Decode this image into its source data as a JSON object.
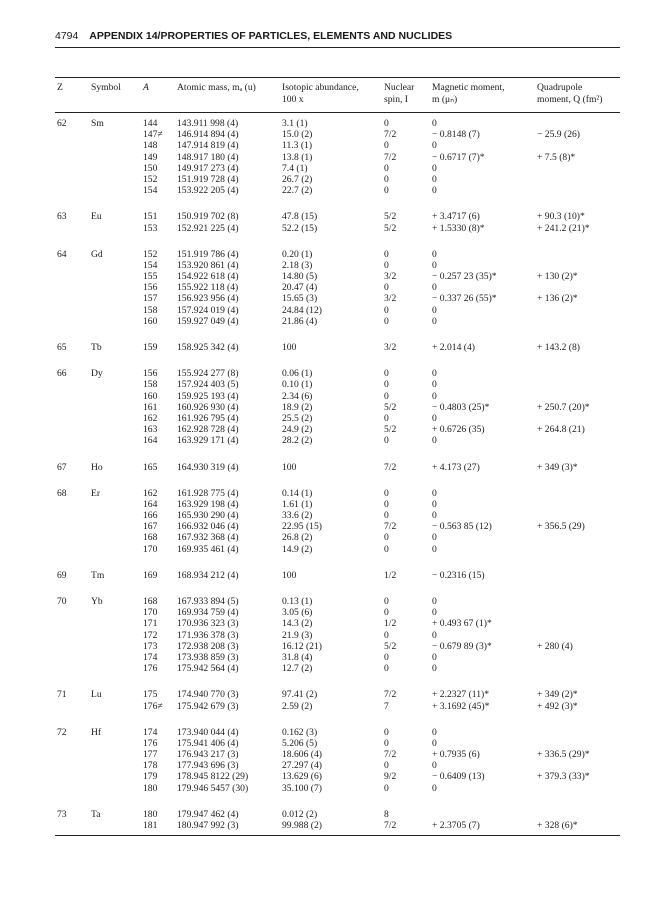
{
  "running_head": {
    "page_number": "4794",
    "title": "APPENDIX 14/PROPERTIES OF PARTICLES, ELEMENTS AND NUCLIDES"
  },
  "table": {
    "headers": {
      "z": "Z",
      "symbol": "Symbol",
      "a": "A",
      "mass": [
        "Atomic mass, mₐ (u)"
      ],
      "abundance": [
        "Isotopic abundance,",
        "100 x"
      ],
      "spin": [
        "Nuclear",
        "spin, I"
      ],
      "magnetic": [
        "Magnetic moment,",
        "m (μₙ)"
      ],
      "quadrupole": [
        "Quadrupole",
        "moment, Q (fm²)"
      ]
    },
    "groups": [
      {
        "z": "62",
        "symbol": "Sm",
        "rows": [
          [
            "144",
            "143.911 998 (4)",
            "3.1 (1)",
            "0",
            "0",
            ""
          ],
          [
            "147≠",
            "146.914 894 (4)",
            "15.0 (2)",
            "7/2",
            "− 0.8148 (7)",
            "− 25.9 (26)"
          ],
          [
            "148",
            "147.914 819 (4)",
            "11.3 (1)",
            "0",
            "0",
            ""
          ],
          [
            "149",
            "148.917 180 (4)",
            "13.8 (1)",
            "7/2",
            "− 0.6717 (7)*",
            "+ 7.5 (8)*"
          ],
          [
            "150",
            "149.917 273 (4)",
            "7.4 (1)",
            "0",
            "0",
            ""
          ],
          [
            "152",
            "151.919 728 (4)",
            "26.7 (2)",
            "0",
            "0",
            ""
          ],
          [
            "154",
            "153.922 205 (4)",
            "22.7 (2)",
            "0",
            "0",
            ""
          ]
        ]
      },
      {
        "z": "63",
        "symbol": "Eu",
        "rows": [
          [
            "151",
            "150.919 702 (8)",
            "47.8 (15)",
            "5/2",
            "+ 3.4717 (6)",
            "+ 90.3 (10)*"
          ],
          [
            "153",
            "152.921 225 (4)",
            "52.2 (15)",
            "5/2",
            "+ 1.5330 (8)*",
            "+ 241.2 (21)*"
          ]
        ]
      },
      {
        "z": "64",
        "symbol": "Gd",
        "rows": [
          [
            "152",
            "151.919 786 (4)",
            "0.20 (1)",
            "0",
            "0",
            ""
          ],
          [
            "154",
            "153.920 861 (4)",
            "2.18 (3)",
            "0",
            "0",
            ""
          ],
          [
            "155",
            "154.922 618 (4)",
            "14.80 (5)",
            "3/2",
            "− 0.257 23 (35)*",
            "+ 130 (2)*"
          ],
          [
            "156",
            "155.922 118 (4)",
            "20.47 (4)",
            "0",
            "0",
            ""
          ],
          [
            "157",
            "156.923 956 (4)",
            "15.65 (3)",
            "3/2",
            "− 0.337 26 (55)*",
            "+ 136 (2)*"
          ],
          [
            "158",
            "157.924 019 (4)",
            "24.84 (12)",
            "0",
            "0",
            ""
          ],
          [
            "160",
            "159.927 049 (4)",
            "21.86 (4)",
            "0",
            "0",
            ""
          ]
        ]
      },
      {
        "z": "65",
        "symbol": "Tb",
        "rows": [
          [
            "159",
            "158.925 342 (4)",
            "100",
            "3/2",
            "+ 2.014 (4)",
            "+ 143.2 (8)"
          ]
        ]
      },
      {
        "z": "66",
        "symbol": "Dy",
        "rows": [
          [
            "156",
            "155.924 277 (8)",
            "0.06 (1)",
            "0",
            "0",
            ""
          ],
          [
            "158",
            "157.924 403 (5)",
            "0.10 (1)",
            "0",
            "0",
            ""
          ],
          [
            "160",
            "159.925 193 (4)",
            "2.34 (6)",
            "0",
            "0",
            ""
          ],
          [
            "161",
            "160.926 930 (4)",
            "18.9 (2)",
            "5/2",
            "− 0.4803 (25)*",
            "+ 250.7 (20)*"
          ],
          [
            "162",
            "161.926 795 (4)",
            "25.5 (2)",
            "0",
            "0",
            ""
          ],
          [
            "163",
            "162.928 728 (4)",
            "24.9 (2)",
            "5/2",
            "+ 0.6726 (35)",
            "+ 264.8 (21)"
          ],
          [
            "164",
            "163.929 171 (4)",
            "28.2 (2)",
            "0",
            "0",
            ""
          ]
        ]
      },
      {
        "z": "67",
        "symbol": "Ho",
        "rows": [
          [
            "165",
            "164.930 319 (4)",
            "100",
            "7/2",
            "+ 4.173 (27)",
            "+ 349 (3)*"
          ]
        ]
      },
      {
        "z": "68",
        "symbol": "Er",
        "rows": [
          [
            "162",
            "161.928 775 (4)",
            "0.14 (1)",
            "0",
            "0",
            ""
          ],
          [
            "164",
            "163.929 198 (4)",
            "1.61 (1)",
            "0",
            "0",
            ""
          ],
          [
            "166",
            "165.930 290 (4)",
            "33.6 (2)",
            "0",
            "0",
            ""
          ],
          [
            "167",
            "166.932 046 (4)",
            "22.95 (15)",
            "7/2",
            "− 0.563 85 (12)",
            "+ 356.5 (29)"
          ],
          [
            "168",
            "167.932 368 (4)",
            "26.8 (2)",
            "0",
            "0",
            ""
          ],
          [
            "170",
            "169.935 461 (4)",
            "14.9 (2)",
            "0",
            "0",
            ""
          ]
        ]
      },
      {
        "z": "69",
        "symbol": "Tm",
        "rows": [
          [
            "169",
            "168.934 212 (4)",
            "100",
            "1/2",
            "− 0.2316 (15)",
            ""
          ]
        ]
      },
      {
        "z": "70",
        "symbol": "Yb",
        "rows": [
          [
            "168",
            "167.933 894 (5)",
            "0.13 (1)",
            "0",
            "0",
            ""
          ],
          [
            "170",
            "169.934 759 (4)",
            "3.05 (6)",
            "0",
            "0",
            ""
          ],
          [
            "171",
            "170.936 323 (3)",
            "14.3 (2)",
            "1/2",
            "+ 0.493 67 (1)*",
            ""
          ],
          [
            "172",
            "171.936 378 (3)",
            "21.9 (3)",
            "0",
            "0",
            ""
          ],
          [
            "173",
            "172.938 208 (3)",
            "16.12 (21)",
            "5/2",
            "− 0.679 89 (3)*",
            "+ 280 (4)"
          ],
          [
            "174",
            "173.938 859 (3)",
            "31.8 (4)",
            "0",
            "0",
            ""
          ],
          [
            "176",
            "175.942 564 (4)",
            "12.7 (2)",
            "0",
            "0",
            ""
          ]
        ]
      },
      {
        "z": "71",
        "symbol": "Lu",
        "rows": [
          [
            "175",
            "174.940 770 (3)",
            "97.41 (2)",
            "7/2",
            "+ 2.2327 (11)*",
            "+ 349 (2)*"
          ],
          [
            "176≠",
            "175.942 679 (3)",
            "2.59 (2)",
            "7",
            "+ 3.1692 (45)*",
            "+ 492 (3)*"
          ]
        ]
      },
      {
        "z": "72",
        "symbol": "Hf",
        "rows": [
          [
            "174",
            "173.940 044 (4)",
            "0.162 (3)",
            "0",
            "0",
            ""
          ],
          [
            "176",
            "175.941 406 (4)",
            "5.206 (5)",
            "0",
            "0",
            ""
          ],
          [
            "177",
            "176.943 217 (3)",
            "18.606 (4)",
            "7/2",
            "+ 0.7935 (6)",
            "+ 336.5 (29)*"
          ],
          [
            "178",
            "177.943 696 (3)",
            "27.297 (4)",
            "0",
            "0",
            ""
          ],
          [
            "179",
            "178.945 8122 (29)",
            "13.629 (6)",
            "9/2",
            "− 0.6409 (13)",
            "+ 379.3 (33)*"
          ],
          [
            "180",
            "179.946 5457 (30)",
            "35.100 (7)",
            "0",
            "0",
            ""
          ]
        ]
      },
      {
        "z": "73",
        "symbol": "Ta",
        "rows": [
          [
            "180",
            "179.947 462 (4)",
            "0.012 (2)",
            "8",
            "",
            ""
          ],
          [
            "181",
            "180.947 992 (3)",
            "99.988 (2)",
            "7/2",
            "+ 2.3705 (7)",
            "+ 328 (6)*"
          ]
        ]
      }
    ]
  }
}
